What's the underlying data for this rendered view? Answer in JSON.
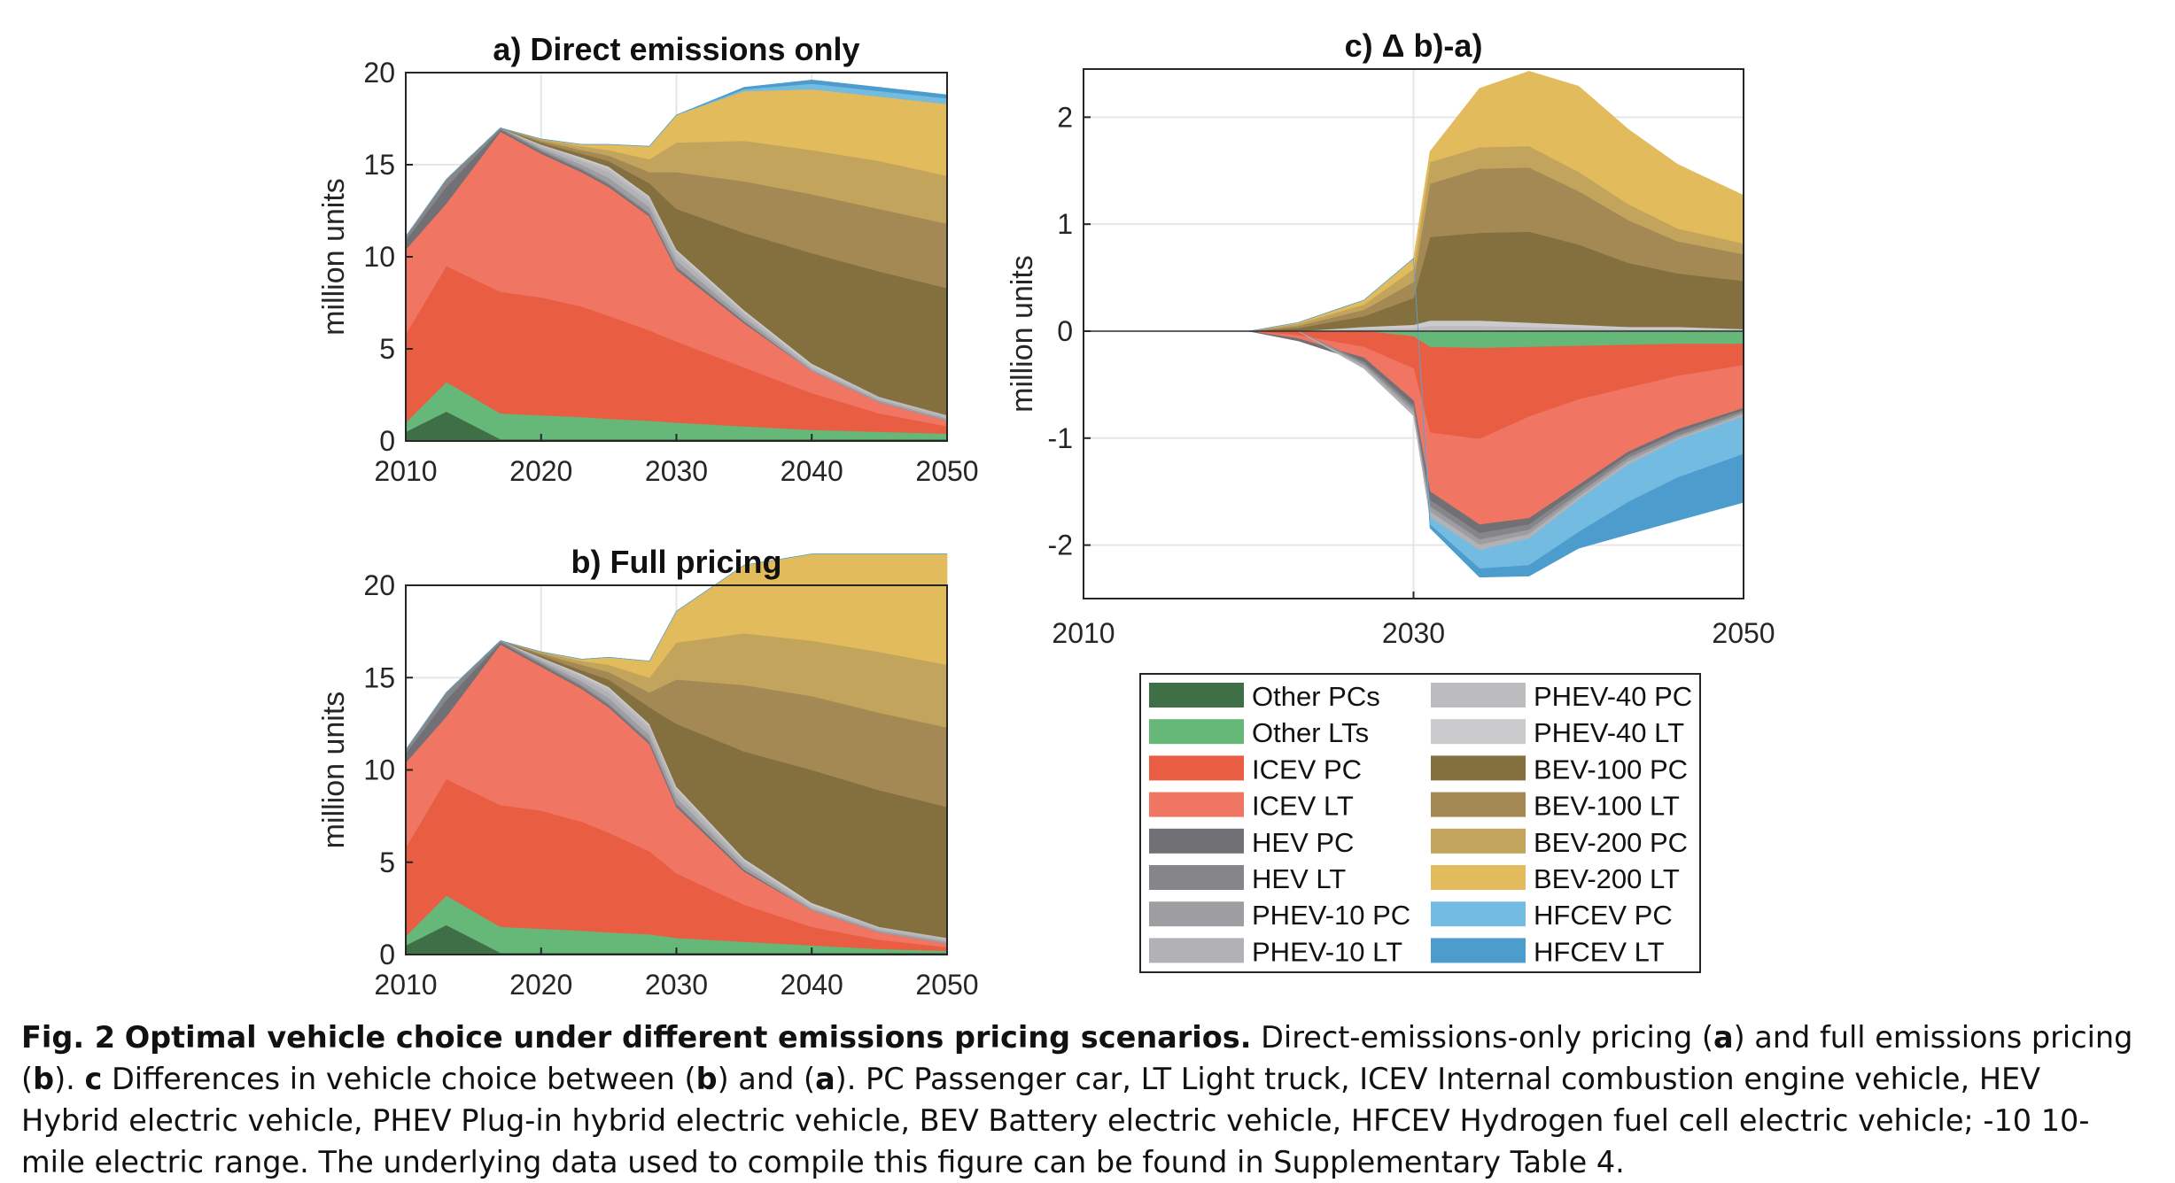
{
  "caption": {
    "fig_label": "Fig. 2",
    "fig_title": "Optimal vehicle choice under different emissions pricing scenarios.",
    "t1": "Direct-emissions-only pricing (",
    "a": "a",
    "t2": ") and full emissions pricing (",
    "b": "b",
    "t3": "). ",
    "c": "c",
    "t4": " Differences in vehicle choice between (",
    "b2": "b",
    "t5": ") and (",
    "a2": "a",
    "t6": "). PC Passenger car, LT Light truck, ICEV Internal combustion engine vehicle, HEV Hybrid electric vehicle, PHEV Plug-in hybrid electric vehicle, BEV Battery electric vehicle, HFCEV Hydrogen fuel cell electric vehicle; -10 10-mile electric range. The underlying data used to compile this figure can be found in Supplementary Table 4."
  },
  "legend": [
    {
      "label": "Other PCs",
      "color": "#3f6f46"
    },
    {
      "label": "Other LTs",
      "color": "#66b878"
    },
    {
      "label": "ICEV PC",
      "color": "#e95d42"
    },
    {
      "label": "ICEV LT",
      "color": "#f07563"
    },
    {
      "label": "HEV PC",
      "color": "#707075"
    },
    {
      "label": "HEV LT",
      "color": "#86868a"
    },
    {
      "label": "PHEV-10 PC",
      "color": "#9e9ea2"
    },
    {
      "label": "PHEV-10 LT",
      "color": "#b2b2b6"
    },
    {
      "label": "PHEV-40 PC",
      "color": "#bcbcbe"
    },
    {
      "label": "PHEV-40 LT",
      "color": "#cbcbcd"
    },
    {
      "label": "BEV-100 PC",
      "color": "#84703f"
    },
    {
      "label": "BEV-100 LT",
      "color": "#a48955"
    },
    {
      "label": "BEV-200 PC",
      "color": "#c3a45c"
    },
    {
      "label": "BEV-200 LT",
      "color": "#e1bb5c"
    },
    {
      "label": "HFCEV PC",
      "color": "#74bbe2"
    },
    {
      "label": "HFCEV LT",
      "color": "#4c9ccd"
    }
  ],
  "chart_data": [
    {
      "panel": "a",
      "type": "area",
      "title": "a) Direct emissions only",
      "ylabel": "million units",
      "xlim": [
        2010,
        2050
      ],
      "ylim": [
        0,
        20
      ],
      "xticks": [
        "2010",
        "2020",
        "2030",
        "2040",
        "2050"
      ],
      "yticks": [
        "0",
        "5",
        "10",
        "15",
        "20"
      ],
      "x": [
        2010,
        2013,
        2017,
        2020,
        2023,
        2025,
        2028,
        2030,
        2035,
        2040,
        2045,
        2050
      ],
      "series": [
        {
          "name": "Other PCs",
          "values": [
            0.5,
            1.6,
            0.1,
            0.1,
            0.1,
            0.1,
            0.1,
            0.1,
            0.1,
            0.1,
            0.1,
            0.1
          ]
        },
        {
          "name": "Other LTs",
          "values": [
            0.5,
            1.6,
            1.4,
            1.3,
            1.2,
            1.1,
            1.0,
            0.9,
            0.7,
            0.5,
            0.4,
            0.3
          ]
        },
        {
          "name": "ICEV PC",
          "values": [
            4.8,
            6.3,
            6.6,
            6.4,
            6.0,
            5.6,
            4.9,
            4.4,
            3.2,
            2.0,
            1.0,
            0.4
          ]
        },
        {
          "name": "ICEV LT",
          "values": [
            4.6,
            3.4,
            8.7,
            7.8,
            7.3,
            7.0,
            6.2,
            3.9,
            2.4,
            1.2,
            0.6,
            0.3
          ]
        },
        {
          "name": "HEV PC",
          "values": [
            0.5,
            0.9,
            0.1,
            0.1,
            0.1,
            0.1,
            0.1,
            0.1,
            0.1,
            0.0,
            0.0,
            0.0
          ]
        },
        {
          "name": "HEV LT",
          "values": [
            0.2,
            0.4,
            0.1,
            0.1,
            0.1,
            0.1,
            0.1,
            0.1,
            0.0,
            0.0,
            0.0,
            0.0
          ]
        },
        {
          "name": "PHEV-10 PC",
          "values": [
            0.0,
            0.0,
            0.0,
            0.1,
            0.2,
            0.3,
            0.3,
            0.3,
            0.2,
            0.1,
            0.1,
            0.1
          ]
        },
        {
          "name": "PHEV-10 LT",
          "values": [
            0.0,
            0.0,
            0.0,
            0.1,
            0.2,
            0.3,
            0.3,
            0.3,
            0.2,
            0.1,
            0.1,
            0.1
          ]
        },
        {
          "name": "PHEV-40 PC",
          "values": [
            0.0,
            0.0,
            0.0,
            0.1,
            0.1,
            0.2,
            0.2,
            0.2,
            0.1,
            0.1,
            0.1,
            0.1
          ]
        },
        {
          "name": "PHEV-40 LT",
          "values": [
            0.0,
            0.0,
            0.0,
            0.0,
            0.1,
            0.1,
            0.1,
            0.1,
            0.1,
            0.1,
            0.0,
            0.0
          ]
        },
        {
          "name": "BEV-100 PC",
          "values": [
            0.0,
            0.0,
            0.0,
            0.1,
            0.2,
            0.3,
            0.7,
            2.2,
            4.2,
            6.0,
            6.8,
            6.9
          ]
        },
        {
          "name": "BEV-100 LT",
          "values": [
            0.0,
            0.0,
            0.0,
            0.1,
            0.2,
            0.3,
            0.6,
            2.0,
            2.8,
            3.2,
            3.4,
            3.5
          ]
        },
        {
          "name": "BEV-200 PC",
          "values": [
            0.0,
            0.0,
            0.0,
            0.1,
            0.2,
            0.3,
            0.7,
            1.6,
            2.2,
            2.4,
            2.6,
            2.6
          ]
        },
        {
          "name": "BEV-200 LT",
          "values": [
            0.0,
            0.0,
            0.0,
            0.0,
            0.1,
            0.3,
            0.7,
            1.5,
            2.7,
            3.3,
            3.5,
            3.9
          ]
        },
        {
          "name": "HFCEV PC",
          "values": [
            0.0,
            0.0,
            0.0,
            0.0,
            0.0,
            0.0,
            0.0,
            0.0,
            0.1,
            0.3,
            0.3,
            0.3
          ]
        },
        {
          "name": "HFCEV LT",
          "values": [
            0.0,
            0.0,
            0.0,
            0.0,
            0.0,
            0.0,
            0.0,
            0.0,
            0.1,
            0.2,
            0.2,
            0.2
          ]
        }
      ]
    },
    {
      "panel": "b",
      "type": "area",
      "title": "b) Full pricing",
      "ylabel": "million units",
      "xlim": [
        2010,
        2050
      ],
      "ylim": [
        0,
        20
      ],
      "xticks": [
        "2010",
        "2020",
        "2030",
        "2040",
        "2050"
      ],
      "yticks": [
        "0",
        "5",
        "10",
        "15",
        "20"
      ],
      "x": [
        2010,
        2013,
        2017,
        2020,
        2023,
        2025,
        2028,
        2030,
        2035,
        2040,
        2045,
        2050
      ],
      "series": [
        {
          "name": "Other PCs",
          "values": [
            0.5,
            1.6,
            0.1,
            0.1,
            0.1,
            0.1,
            0.1,
            0.1,
            0.1,
            0.1,
            0.1,
            0.1
          ]
        },
        {
          "name": "Other LTs",
          "values": [
            0.5,
            1.6,
            1.4,
            1.3,
            1.2,
            1.1,
            1.0,
            0.8,
            0.6,
            0.4,
            0.2,
            0.1
          ]
        },
        {
          "name": "ICEV PC",
          "values": [
            4.8,
            6.3,
            6.6,
            6.4,
            5.9,
            5.4,
            4.5,
            3.5,
            2.0,
            1.0,
            0.5,
            0.2
          ]
        },
        {
          "name": "ICEV LT",
          "values": [
            4.6,
            3.4,
            8.7,
            7.8,
            7.2,
            6.8,
            5.8,
            3.6,
            1.8,
            0.9,
            0.4,
            0.2
          ]
        },
        {
          "name": "HEV PC",
          "values": [
            0.5,
            0.9,
            0.1,
            0.1,
            0.1,
            0.1,
            0.1,
            0.1,
            0.1,
            0.0,
            0.0,
            0.0
          ]
        },
        {
          "name": "HEV LT",
          "values": [
            0.2,
            0.4,
            0.1,
            0.1,
            0.1,
            0.1,
            0.1,
            0.1,
            0.0,
            0.0,
            0.0,
            0.0
          ]
        },
        {
          "name": "PHEV-10 PC",
          "values": [
            0.0,
            0.0,
            0.0,
            0.1,
            0.2,
            0.3,
            0.3,
            0.3,
            0.2,
            0.1,
            0.1,
            0.1
          ]
        },
        {
          "name": "PHEV-10 LT",
          "values": [
            0.0,
            0.0,
            0.0,
            0.1,
            0.2,
            0.3,
            0.3,
            0.3,
            0.2,
            0.1,
            0.1,
            0.1
          ]
        },
        {
          "name": "PHEV-40 PC",
          "values": [
            0.0,
            0.0,
            0.0,
            0.1,
            0.1,
            0.2,
            0.2,
            0.2,
            0.1,
            0.1,
            0.1,
            0.1
          ]
        },
        {
          "name": "PHEV-40 LT",
          "values": [
            0.0,
            0.0,
            0.0,
            0.0,
            0.1,
            0.1,
            0.1,
            0.1,
            0.1,
            0.1,
            0.0,
            0.0
          ]
        },
        {
          "name": "BEV-100 PC",
          "values": [
            0.0,
            0.0,
            0.0,
            0.1,
            0.2,
            0.4,
            0.9,
            3.4,
            5.8,
            7.2,
            7.4,
            7.1
          ]
        },
        {
          "name": "BEV-100 LT",
          "values": [
            0.0,
            0.0,
            0.0,
            0.1,
            0.3,
            0.4,
            0.8,
            2.4,
            3.6,
            4.0,
            4.2,
            4.3
          ]
        },
        {
          "name": "BEV-200 PC",
          "values": [
            0.0,
            0.0,
            0.0,
            0.1,
            0.2,
            0.4,
            0.8,
            2.0,
            2.8,
            3.0,
            3.3,
            3.4
          ]
        },
        {
          "name": "BEV-200 LT",
          "values": [
            0.0,
            0.0,
            0.0,
            0.0,
            0.1,
            0.4,
            0.9,
            1.7,
            3.7,
            4.7,
            5.3,
            6.0
          ]
        },
        {
          "name": "HFCEV PC",
          "values": [
            0.0,
            0.0,
            0.0,
            0.0,
            0.0,
            0.0,
            0.0,
            0.0,
            0.0,
            0.0,
            0.0,
            0.0
          ]
        },
        {
          "name": "HFCEV LT",
          "values": [
            0.0,
            0.0,
            0.0,
            0.0,
            0.0,
            0.0,
            0.0,
            0.0,
            0.0,
            0.0,
            0.0,
            0.0
          ]
        }
      ]
    },
    {
      "panel": "c",
      "type": "area",
      "title": "c) Δ b)-a)",
      "ylabel": "million units",
      "xlim": [
        2010,
        2050
      ],
      "ylim": [
        -2.5,
        2.45
      ],
      "xticks": [
        "2010",
        "2030",
        "2050"
      ],
      "ytick_values": [
        -2,
        -1,
        0,
        1,
        2
      ],
      "yticks": [
        "-2",
        "-1",
        "0",
        "1",
        "2"
      ],
      "x": [
        2010,
        2020,
        2023,
        2027,
        2030,
        2031,
        2034,
        2037,
        2040,
        2043,
        2046,
        2050
      ],
      "series": [
        {
          "name": "Other PCs",
          "values": [
            0,
            0,
            0,
            0,
            0,
            0,
            0,
            0,
            0,
            0,
            0,
            0
          ]
        },
        {
          "name": "Other LTs",
          "values": [
            0,
            0,
            0,
            0,
            -0.05,
            -0.15,
            -0.16,
            -0.15,
            -0.14,
            -0.13,
            -0.12,
            -0.12
          ]
        },
        {
          "name": "ICEV PC",
          "values": [
            0,
            0,
            -0.04,
            -0.15,
            -0.3,
            -0.8,
            -0.85,
            -0.65,
            -0.5,
            -0.4,
            -0.3,
            -0.2
          ]
        },
        {
          "name": "ICEV LT",
          "values": [
            0,
            0,
            -0.03,
            -0.1,
            -0.3,
            -0.55,
            -0.8,
            -0.95,
            -0.8,
            -0.6,
            -0.5,
            -0.4
          ]
        },
        {
          "name": "HEV PC",
          "values": [
            0,
            0,
            -0.02,
            -0.04,
            -0.05,
            -0.08,
            -0.08,
            -0.06,
            -0.04,
            -0.03,
            -0.03,
            -0.02
          ]
        },
        {
          "name": "HEV LT",
          "values": [
            0,
            0,
            0,
            -0.02,
            -0.03,
            -0.06,
            -0.06,
            -0.05,
            -0.04,
            -0.03,
            -0.03,
            -0.02
          ]
        },
        {
          "name": "PHEV-10 PC",
          "values": [
            0,
            0,
            0,
            -0.02,
            -0.03,
            -0.05,
            -0.05,
            -0.04,
            -0.03,
            -0.03,
            -0.02,
            -0.02
          ]
        },
        {
          "name": "PHEV-10 LT",
          "values": [
            0,
            0,
            0,
            -0.02,
            -0.03,
            -0.05,
            -0.05,
            -0.04,
            -0.03,
            -0.03,
            -0.02,
            -0.02
          ]
        },
        {
          "name": "PHEV-40 PC",
          "values": [
            0,
            0,
            0,
            0.02,
            0.03,
            0.05,
            0.05,
            0.04,
            0.03,
            0.02,
            0.02,
            0.01
          ]
        },
        {
          "name": "PHEV-40 LT",
          "values": [
            0,
            0,
            0,
            0.02,
            0.03,
            0.05,
            0.05,
            0.04,
            0.03,
            0.02,
            0.02,
            0.01
          ]
        },
        {
          "name": "BEV-100 PC",
          "values": [
            0,
            0,
            0.03,
            0.1,
            0.25,
            0.78,
            0.82,
            0.85,
            0.75,
            0.6,
            0.5,
            0.45
          ]
        },
        {
          "name": "BEV-100 LT",
          "values": [
            0,
            0,
            0.02,
            0.06,
            0.15,
            0.5,
            0.6,
            0.6,
            0.5,
            0.4,
            0.3,
            0.25
          ]
        },
        {
          "name": "BEV-200 PC",
          "values": [
            0,
            0,
            0.02,
            0.05,
            0.12,
            0.2,
            0.2,
            0.2,
            0.18,
            0.15,
            0.12,
            0.1
          ]
        },
        {
          "name": "BEV-200 LT",
          "values": [
            0,
            0,
            0.01,
            0.04,
            0.1,
            0.1,
            0.55,
            0.7,
            0.8,
            0.7,
            0.6,
            0.45
          ]
        },
        {
          "name": "HFCEV PC",
          "values": [
            0,
            0,
            0,
            0,
            0,
            -0.07,
            -0.17,
            -0.25,
            -0.3,
            -0.35,
            -0.35,
            -0.35
          ]
        },
        {
          "name": "HFCEV LT",
          "values": [
            0,
            0,
            0,
            0,
            0,
            -0.03,
            -0.08,
            -0.1,
            -0.15,
            -0.3,
            -0.4,
            -0.45
          ]
        }
      ]
    }
  ]
}
